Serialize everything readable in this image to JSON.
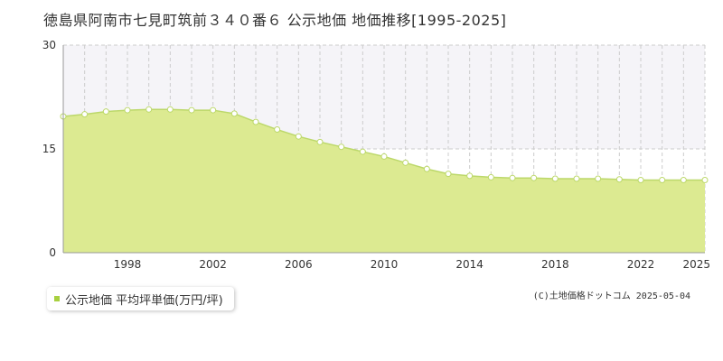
{
  "page_title": "徳島県阿南市七見町筑前３４０番６ 公示地価 地価推移[1995-2025]",
  "legend": {
    "label": "公示地価 平均坪単価(万円/坪)"
  },
  "credit": "(C)土地価格ドットコム 2025-05-04",
  "colors": {
    "area_fill": "#dcea91",
    "line": "#bcd86a",
    "marker_fill": "#ffffff",
    "legend_swatch": "#a8d040",
    "upper_band": "#f5f4f8",
    "grid": "#cccccc"
  },
  "chart_data": {
    "type": "area",
    "title": "",
    "xlabel": "",
    "ylabel": "",
    "x": [
      1995,
      1996,
      1997,
      1998,
      1999,
      2000,
      2001,
      2002,
      2003,
      2004,
      2005,
      2006,
      2007,
      2008,
      2009,
      2010,
      2011,
      2012,
      2013,
      2014,
      2015,
      2016,
      2017,
      2018,
      2019,
      2020,
      2021,
      2022,
      2023,
      2024,
      2025
    ],
    "series": [
      {
        "name": "公示地価 平均坪単価(万円/坪)",
        "values": [
          19.7,
          20.0,
          20.4,
          20.6,
          20.7,
          20.7,
          20.6,
          20.6,
          20.1,
          18.9,
          17.8,
          16.8,
          16.0,
          15.3,
          14.6,
          13.9,
          13.0,
          12.1,
          11.4,
          11.1,
          10.9,
          10.8,
          10.8,
          10.7,
          10.7,
          10.7,
          10.6,
          10.5,
          10.5,
          10.5,
          10.5
        ]
      }
    ],
    "xlim": [
      1995,
      2025
    ],
    "ylim": [
      0,
      30
    ],
    "y_ticks": [
      "0",
      "15",
      "30"
    ],
    "x_ticks": [
      "1998",
      "2002",
      "2006",
      "2010",
      "2014",
      "2018",
      "2022",
      "2025"
    ],
    "grid": true,
    "legend_position": "bottom-left"
  }
}
